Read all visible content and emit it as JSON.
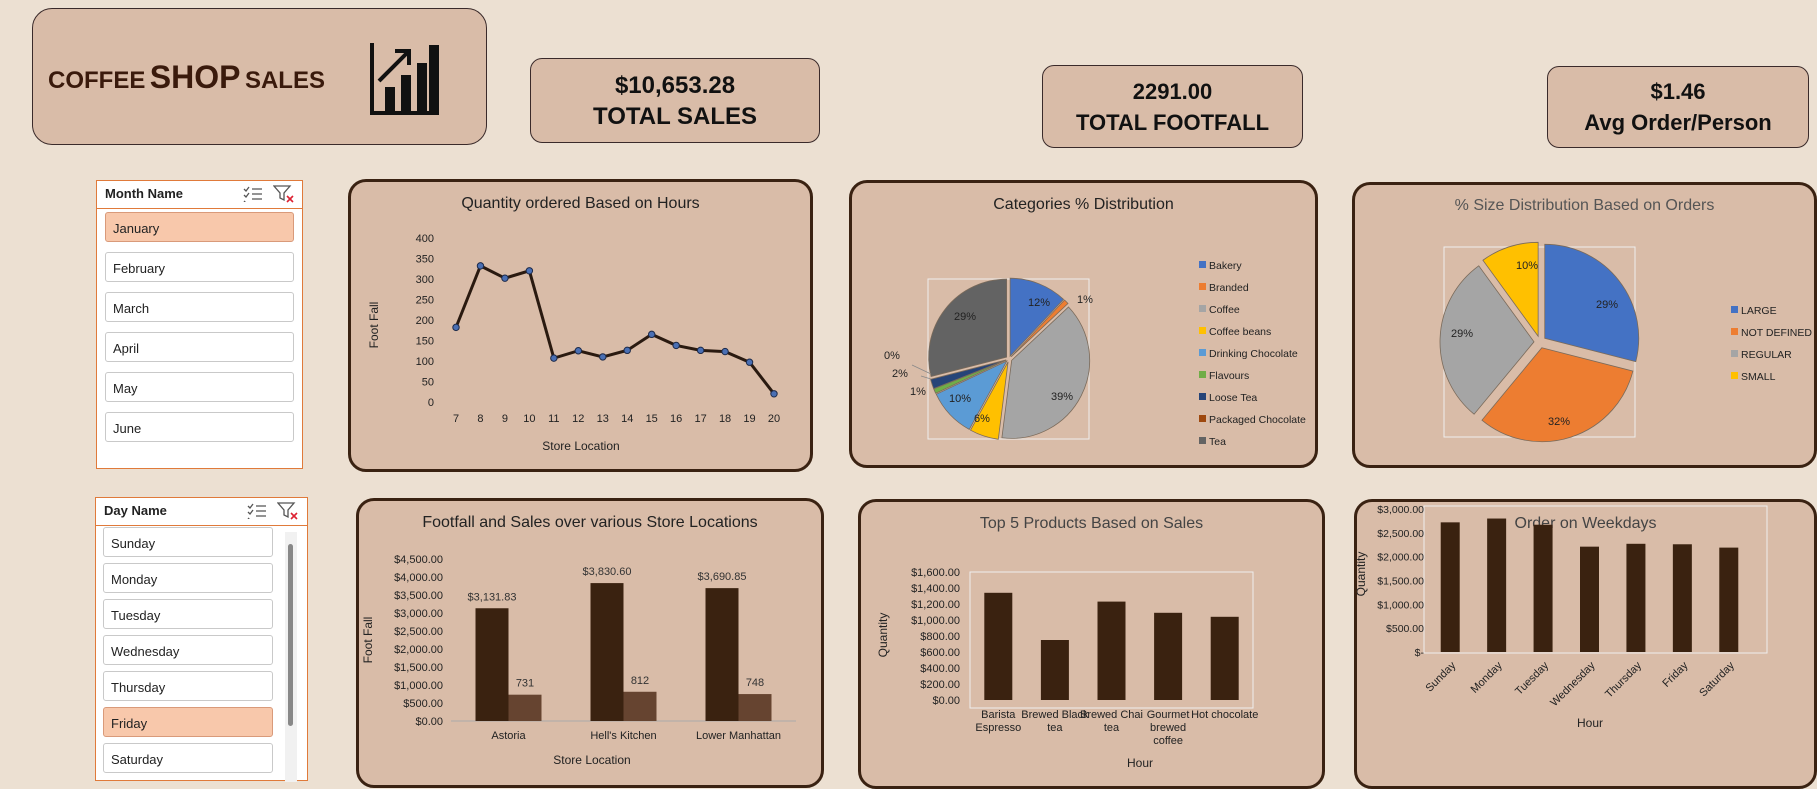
{
  "header": {
    "word1": "COFFEE",
    "word2": "SHOP",
    "word3": "SALES",
    "icon": "bar-chart-growth-icon"
  },
  "kpis": [
    {
      "value": "$10,653.28",
      "label": "TOTAL SALES"
    },
    {
      "value": "2291.00",
      "label": "TOTAL FOOTFALL"
    },
    {
      "value": "$1.46",
      "label": "Avg Order/Person"
    }
  ],
  "month_slicer": {
    "title": "Month Name",
    "items": [
      "January",
      "February",
      "March",
      "April",
      "May",
      "June"
    ],
    "selected": [
      "January"
    ]
  },
  "day_slicer": {
    "title": "Day Name",
    "items": [
      "Sunday",
      "Monday",
      "Tuesday",
      "Wednesday",
      "Thursday",
      "Friday",
      "Saturday"
    ],
    "selected": [
      "Friday"
    ]
  },
  "colors": {
    "background": "#ece0d2",
    "panel": "#d9bca8",
    "border": "#3a2212",
    "bar_dark": "#3a2210",
    "bar_light": "#664430",
    "slicer_selected": "#f8c8ab",
    "slicer_border": "#e07a3a"
  },
  "chart_data": [
    {
      "type": "line",
      "title": "Quantity ordered Based on Hours",
      "xlabel": "Store Location",
      "ylabel": "Foot Fall",
      "x": [
        "7",
        "8",
        "9",
        "10",
        "11",
        "12",
        "13",
        "14",
        "15",
        "16",
        "17",
        "18",
        "19",
        "20"
      ],
      "series": [
        {
          "values": [
            182,
            332,
            302,
            320,
            107,
            125,
            110,
            126,
            165,
            138,
            126,
            123,
            97,
            20
          ]
        }
      ],
      "ylim": [
        0,
        400
      ],
      "yticks": [
        "0",
        "50",
        "100",
        "150",
        "200",
        "250",
        "300",
        "350",
        "400"
      ]
    },
    {
      "type": "pie",
      "title": "Categories %  Distribution",
      "legend_position": "right",
      "categories": [
        "Bakery",
        "Branded",
        "Coffee",
        "Coffee beans",
        "Drinking Chocolate",
        "Flavours",
        "Loose Tea",
        "Packaged Chocolate",
        "Tea"
      ],
      "values": [
        12,
        1,
        39,
        6,
        10,
        1,
        2,
        0,
        29
      ],
      "labels": [
        "12%",
        "1%",
        "39%",
        "6%",
        "10%",
        "1%",
        "2%",
        "0%",
        "29%"
      ],
      "colors": [
        "#4472c4",
        "#ed7d31",
        "#a5a5a5",
        "#ffc000",
        "#5b9bd5",
        "#70ad47",
        "#264478",
        "#9e480e",
        "#636363"
      ]
    },
    {
      "type": "pie",
      "title": "% Size Distribution Based on Orders",
      "legend_position": "right",
      "categories": [
        "LARGE",
        "NOT DEFINED",
        "REGULAR",
        "SMALL"
      ],
      "values": [
        29,
        32,
        29,
        10
      ],
      "labels": [
        "29%",
        "32%",
        "29%",
        "10%"
      ],
      "colors": [
        "#4472c4",
        "#ed7d31",
        "#a5a5a5",
        "#ffc000"
      ]
    },
    {
      "type": "bar",
      "title": "Footfall and Sales over various Store Locations",
      "xlabel": "Store Location",
      "ylabel": "Foot Fall",
      "categories": [
        "Astoria",
        "Hell's Kitchen",
        "Lower Manhattan"
      ],
      "series": [
        {
          "values": [
            3131.83,
            3830.6,
            3690.85
          ],
          "labels": [
            "$3,131.83",
            "$3,830.60",
            "$3,690.85"
          ]
        },
        {
          "values": [
            731,
            812,
            748
          ],
          "labels": [
            "731",
            "812",
            "748"
          ]
        }
      ],
      "ylim": [
        0,
        4500
      ],
      "yticks": [
        "$0.00",
        "$500.00",
        "$1,000.00",
        "$1,500.00",
        "$2,000.00",
        "$2,500.00",
        "$3,000.00",
        "$3,500.00",
        "$4,000.00",
        "$4,500.00"
      ]
    },
    {
      "type": "bar",
      "title": "Top 5 Products Based on Sales",
      "xlabel": "Hour",
      "ylabel": "Quantity",
      "categories": [
        "Barista Espresso",
        "Brewed Black tea",
        "Brewed Chai tea",
        "Gourmet brewed coffee",
        "Hot chocolate"
      ],
      "values": [
        1340,
        750,
        1230,
        1090,
        1040
      ],
      "ylim": [
        0,
        1600
      ],
      "yticks": [
        "$0.00",
        "$200.00",
        "$400.00",
        "$600.00",
        "$800.00",
        "$1,000.00",
        "$1,200.00",
        "$1,400.00",
        "$1,600.00"
      ]
    },
    {
      "type": "bar",
      "title": "Order on Weekdays",
      "xlabel": "Hour",
      "ylabel": "Quantity",
      "categories": [
        "Sunday",
        "Monday",
        "Tuesday",
        "Wednesday",
        "Thursday",
        "Friday",
        "Saturday"
      ],
      "values": [
        2720,
        2800,
        2670,
        2210,
        2270,
        2260,
        2190
      ],
      "ylim": [
        0,
        3000
      ],
      "yticks": [
        "$-",
        "$500.00",
        "$1,000.00",
        "$1,500.00",
        "$2,000.00",
        "$2,500.00",
        "$3,000.00"
      ]
    }
  ]
}
